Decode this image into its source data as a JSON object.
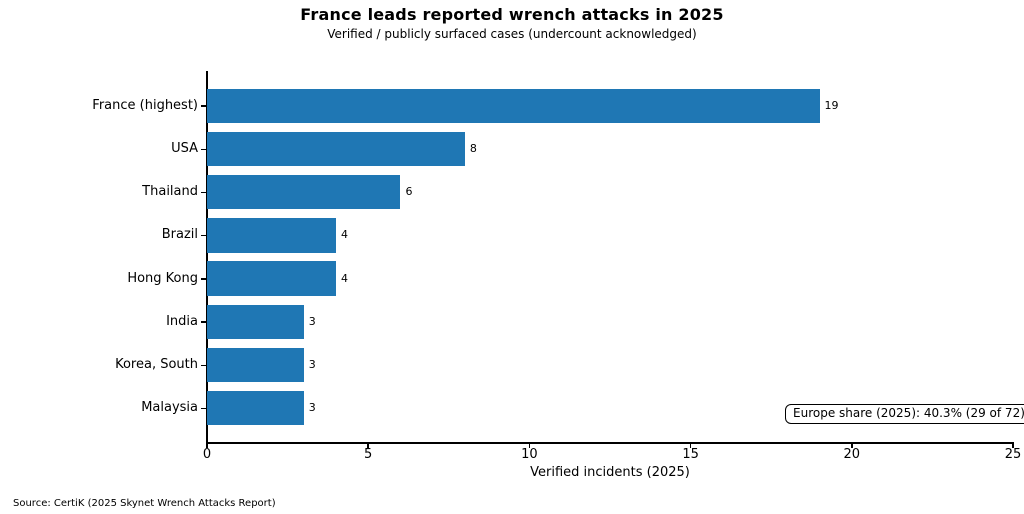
{
  "chart_data": {
    "type": "bar",
    "orientation": "horizontal",
    "title": "France leads reported wrench attacks in 2025",
    "subtitle": "Verified / publicly surfaced cases (undercount acknowledged)",
    "categories": [
      "France (highest)",
      "USA",
      "Thailand",
      "Brazil",
      "Hong Kong",
      "India",
      "Korea, South",
      "Malaysia"
    ],
    "values": [
      19,
      8,
      6,
      4,
      4,
      3,
      3,
      3
    ],
    "xlabel": "Verified incidents (2025)",
    "ylabel": "",
    "xlim": [
      0,
      25
    ],
    "xticks": [
      0,
      5,
      10,
      15,
      20,
      25
    ],
    "grid": false,
    "legend": null,
    "bar_color": "#1f77b4",
    "value_labels": true,
    "annotation": "Europe share (2025): 40.3% (29 of 72)",
    "source": "Source: CertiK (2025 Skynet Wrench Attacks Report)"
  }
}
